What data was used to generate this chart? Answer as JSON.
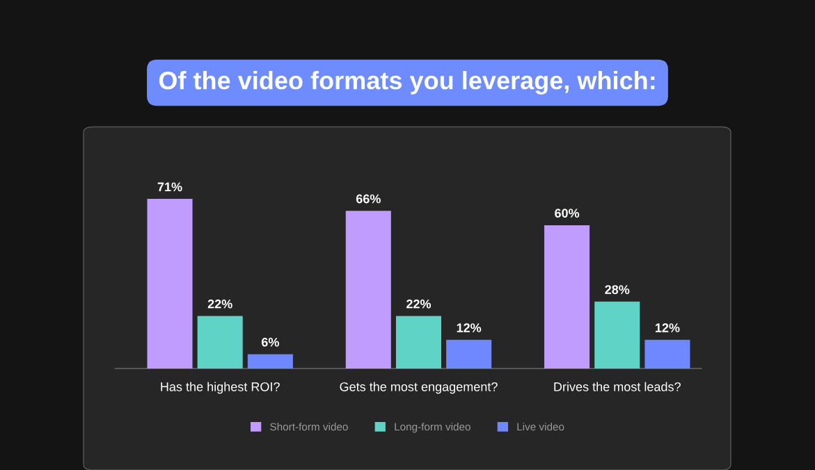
{
  "chart_data": {
    "type": "bar",
    "title": "Of the video formats you leverage, which:",
    "categories": [
      "Has the highest ROI?",
      "Gets the most engagement?",
      "Drives the most leads?"
    ],
    "series": [
      {
        "name": "Short-form video",
        "color": "#c09cff",
        "values": [
          71,
          66,
          60
        ],
        "value_labels": [
          "71%",
          "66%",
          "60%"
        ]
      },
      {
        "name": "Long-form video",
        "color": "#5fd3c6",
        "values": [
          22,
          22,
          28
        ],
        "value_labels": [
          "22%",
          "22%",
          "28%"
        ]
      },
      {
        "name": "Live video",
        "color": "#7088ff",
        "values": [
          6,
          12,
          12
        ],
        "value_labels": [
          "6%",
          "12%",
          "12%"
        ]
      }
    ],
    "legend": "bottom"
  }
}
